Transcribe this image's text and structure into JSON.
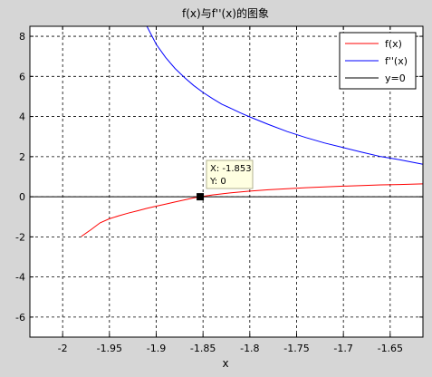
{
  "chart_data": {
    "type": "line",
    "title": "f(x)与f''(x)的图象",
    "xlabel": "x",
    "ylabel": "",
    "xlim": [
      -2.035,
      -1.615
    ],
    "ylim": [
      -7.0,
      8.5
    ],
    "xticks": [
      -2,
      -1.95,
      -1.9,
      -1.85,
      -1.8,
      -1.75,
      -1.7,
      -1.65
    ],
    "xtick_labels": [
      "-2",
      "-1.95",
      "-1.9",
      "-1.85",
      "-1.8",
      "-1.75",
      "-1.7",
      "-1.65"
    ],
    "yticks": [
      -6,
      -4,
      -2,
      0,
      2,
      4,
      6,
      8
    ],
    "ytick_labels": [
      "-6",
      "-4",
      "-2",
      "0",
      "2",
      "4",
      "6",
      "8"
    ],
    "grid": true,
    "legend": "top-right",
    "series": [
      {
        "name": "f(x)",
        "color": "#ff0000",
        "x": [
          -1.98,
          -1.97,
          -1.96,
          -1.95,
          -1.94,
          -1.93,
          -1.92,
          -1.91,
          -1.9,
          -1.89,
          -1.88,
          -1.87,
          -1.86,
          -1.853,
          -1.84,
          -1.82,
          -1.8,
          -1.78,
          -1.76,
          -1.74,
          -1.72,
          -1.7,
          -1.68,
          -1.66,
          -1.64,
          -1.615
        ],
        "y": [
          -1.98,
          -1.65,
          -1.3,
          -1.1,
          -0.95,
          -0.82,
          -0.7,
          -0.58,
          -0.47,
          -0.37,
          -0.26,
          -0.16,
          -0.06,
          0.0,
          0.09,
          0.2,
          0.28,
          0.35,
          0.4,
          0.45,
          0.49,
          0.53,
          0.56,
          0.59,
          0.61,
          0.64
        ]
      },
      {
        "name": "f''(x)",
        "color": "#0000ff",
        "x": [
          -1.91,
          -1.9,
          -1.89,
          -1.88,
          -1.87,
          -1.86,
          -1.85,
          -1.84,
          -1.83,
          -1.82,
          -1.81,
          -1.8,
          -1.78,
          -1.76,
          -1.74,
          -1.72,
          -1.7,
          -1.68,
          -1.66,
          -1.64,
          -1.615
        ],
        "y": [
          8.5,
          7.6,
          6.95,
          6.4,
          5.95,
          5.55,
          5.2,
          4.9,
          4.62,
          4.4,
          4.18,
          3.98,
          3.6,
          3.25,
          2.95,
          2.68,
          2.45,
          2.22,
          2.0,
          1.85,
          1.62
        ]
      },
      {
        "name": "y=0",
        "color": "#000000",
        "x": [
          -2.035,
          -1.615
        ],
        "y": [
          0,
          0
        ]
      }
    ],
    "datatip": {
      "x": -1.853,
      "y": 0,
      "lines": [
        "X: -1.853",
        "Y: 0"
      ]
    }
  }
}
